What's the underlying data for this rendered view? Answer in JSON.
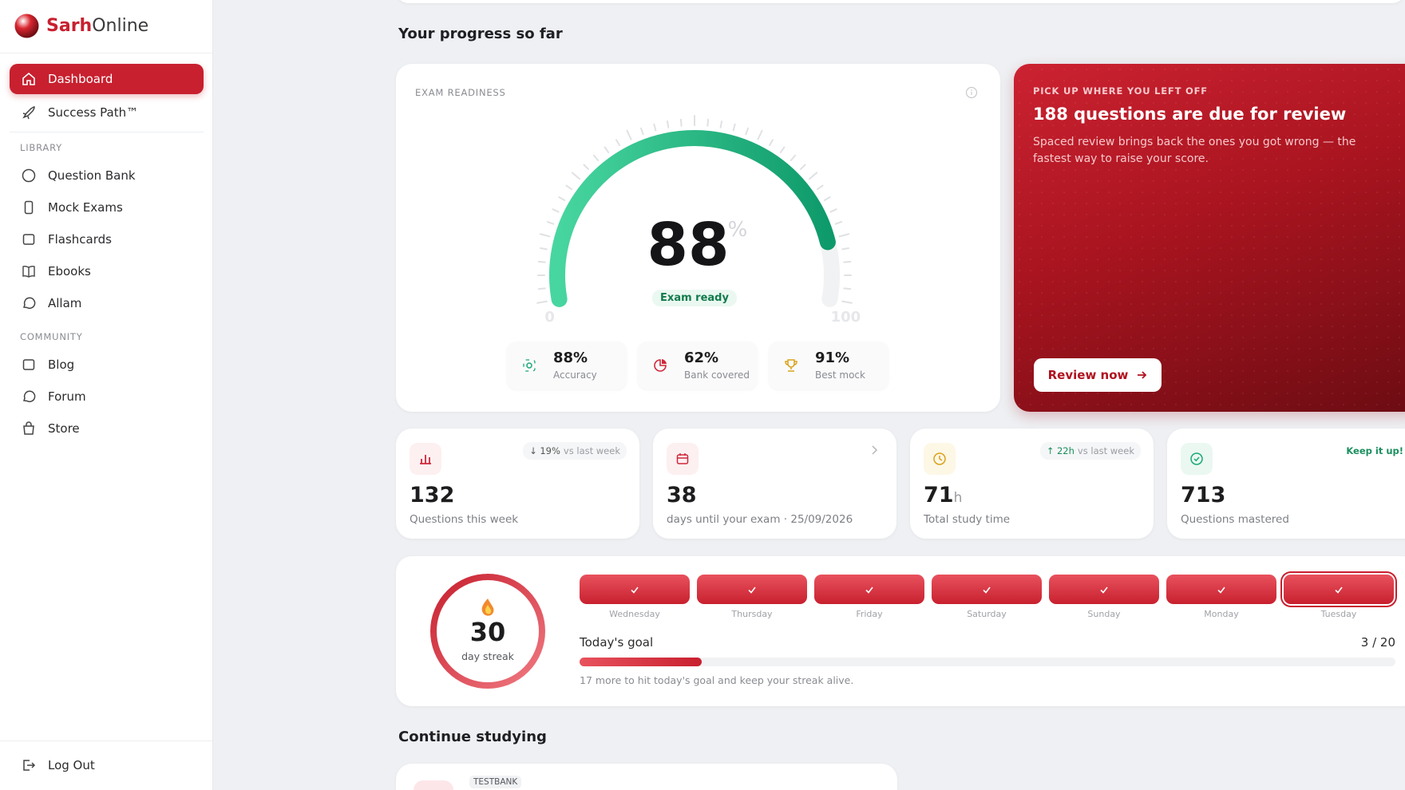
{
  "sidebar": {
    "brand": [
      "Sarh",
      "Online"
    ],
    "nav": [
      "Dashboard",
      "Success Path™"
    ],
    "sections": [
      {
        "title": "LIBRARY",
        "items": [
          "Question Bank",
          "Mock Exams",
          "Flashcards",
          "Ebooks",
          "Allam"
        ]
      },
      {
        "title": "COMMUNITY",
        "items": [
          "Blog",
          "Forum",
          "Store"
        ]
      }
    ],
    "logout": "Log Out"
  },
  "main": {
    "heading": "Your progress so far",
    "readiness": {
      "title": "EXAM READINESS",
      "value": 88,
      "unit": "%",
      "status": "Exam ready",
      "scale": [
        0,
        100
      ],
      "stats": [
        {
          "value": "88%",
          "label": "Accuracy"
        },
        {
          "value": "62%",
          "label": "Bank covered"
        },
        {
          "value": "91%",
          "label": "Best mock"
        }
      ]
    },
    "review": {
      "kicker": "PICK UP WHERE YOU LEFT OFF",
      "title": "188 questions are due for review",
      "body": "Spaced review brings back the ones you got wrong — the fastest way to raise your score.",
      "button": "Review now"
    },
    "cards": [
      {
        "value": "132",
        "label": "Questions this week",
        "badge": "↓ 19%",
        "badge_note": "vs last week"
      },
      {
        "value": "38",
        "label": "days until your exam · 25/09/2026"
      },
      {
        "value": "71",
        "unit": "h",
        "label": "Total study time",
        "badge": "↑ 22h",
        "badge_note": "vs last week"
      },
      {
        "value": "713",
        "label": "Questions mastered",
        "badge": "Keep it up!"
      }
    ],
    "streak": {
      "value": "30",
      "label": "day streak",
      "week": [
        "Wednesday",
        "Thursday",
        "Friday",
        "Saturday",
        "Sunday",
        "Monday",
        "Tuesday"
      ],
      "goal_title": "Today's goal",
      "goal_done": 3,
      "goal_total": 20,
      "goal_label": "3 / 20",
      "goal_note": "17 more to hit today's goal and keep your streak alive."
    },
    "continue": {
      "heading": "Continue studying",
      "tag": "TESTBANK"
    }
  }
}
